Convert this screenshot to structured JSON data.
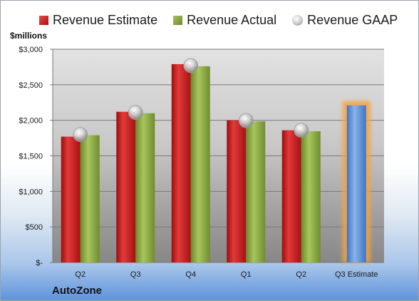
{
  "chart_data": {
    "type": "bar",
    "ylabel": "$millions",
    "footer": "AutoZone",
    "categories": [
      "Q2",
      "Q3",
      "Q4",
      "Q1",
      "Q2",
      "Q3 Estimate"
    ],
    "series": [
      {
        "name": "Revenue Estimate",
        "values": [
          1770,
          2120,
          2790,
          2000,
          1860,
          null
        ],
        "color": "#c00000"
      },
      {
        "name": "Revenue Actual",
        "values": [
          1790,
          2100,
          2760,
          1985,
          1845,
          null
        ],
        "color": "#8aa83c"
      },
      {
        "name": "Revenue GAAP",
        "values": [
          1800,
          2110,
          2770,
          1995,
          1860,
          null
        ],
        "color": "#c0c0c0"
      }
    ],
    "estimate_bar": {
      "category": "Q3 Estimate",
      "value": 2210,
      "color": "#5b8fd6"
    },
    "yticks": [
      0,
      500,
      1000,
      1500,
      2000,
      2500,
      3000
    ],
    "ytick_labels": [
      "$-",
      "$500",
      "$1,000",
      "$1,500",
      "$2,000",
      "$2,500",
      "$3,000"
    ],
    "ylim": [
      0,
      3000
    ],
    "grid": true,
    "legend_position": "top"
  }
}
